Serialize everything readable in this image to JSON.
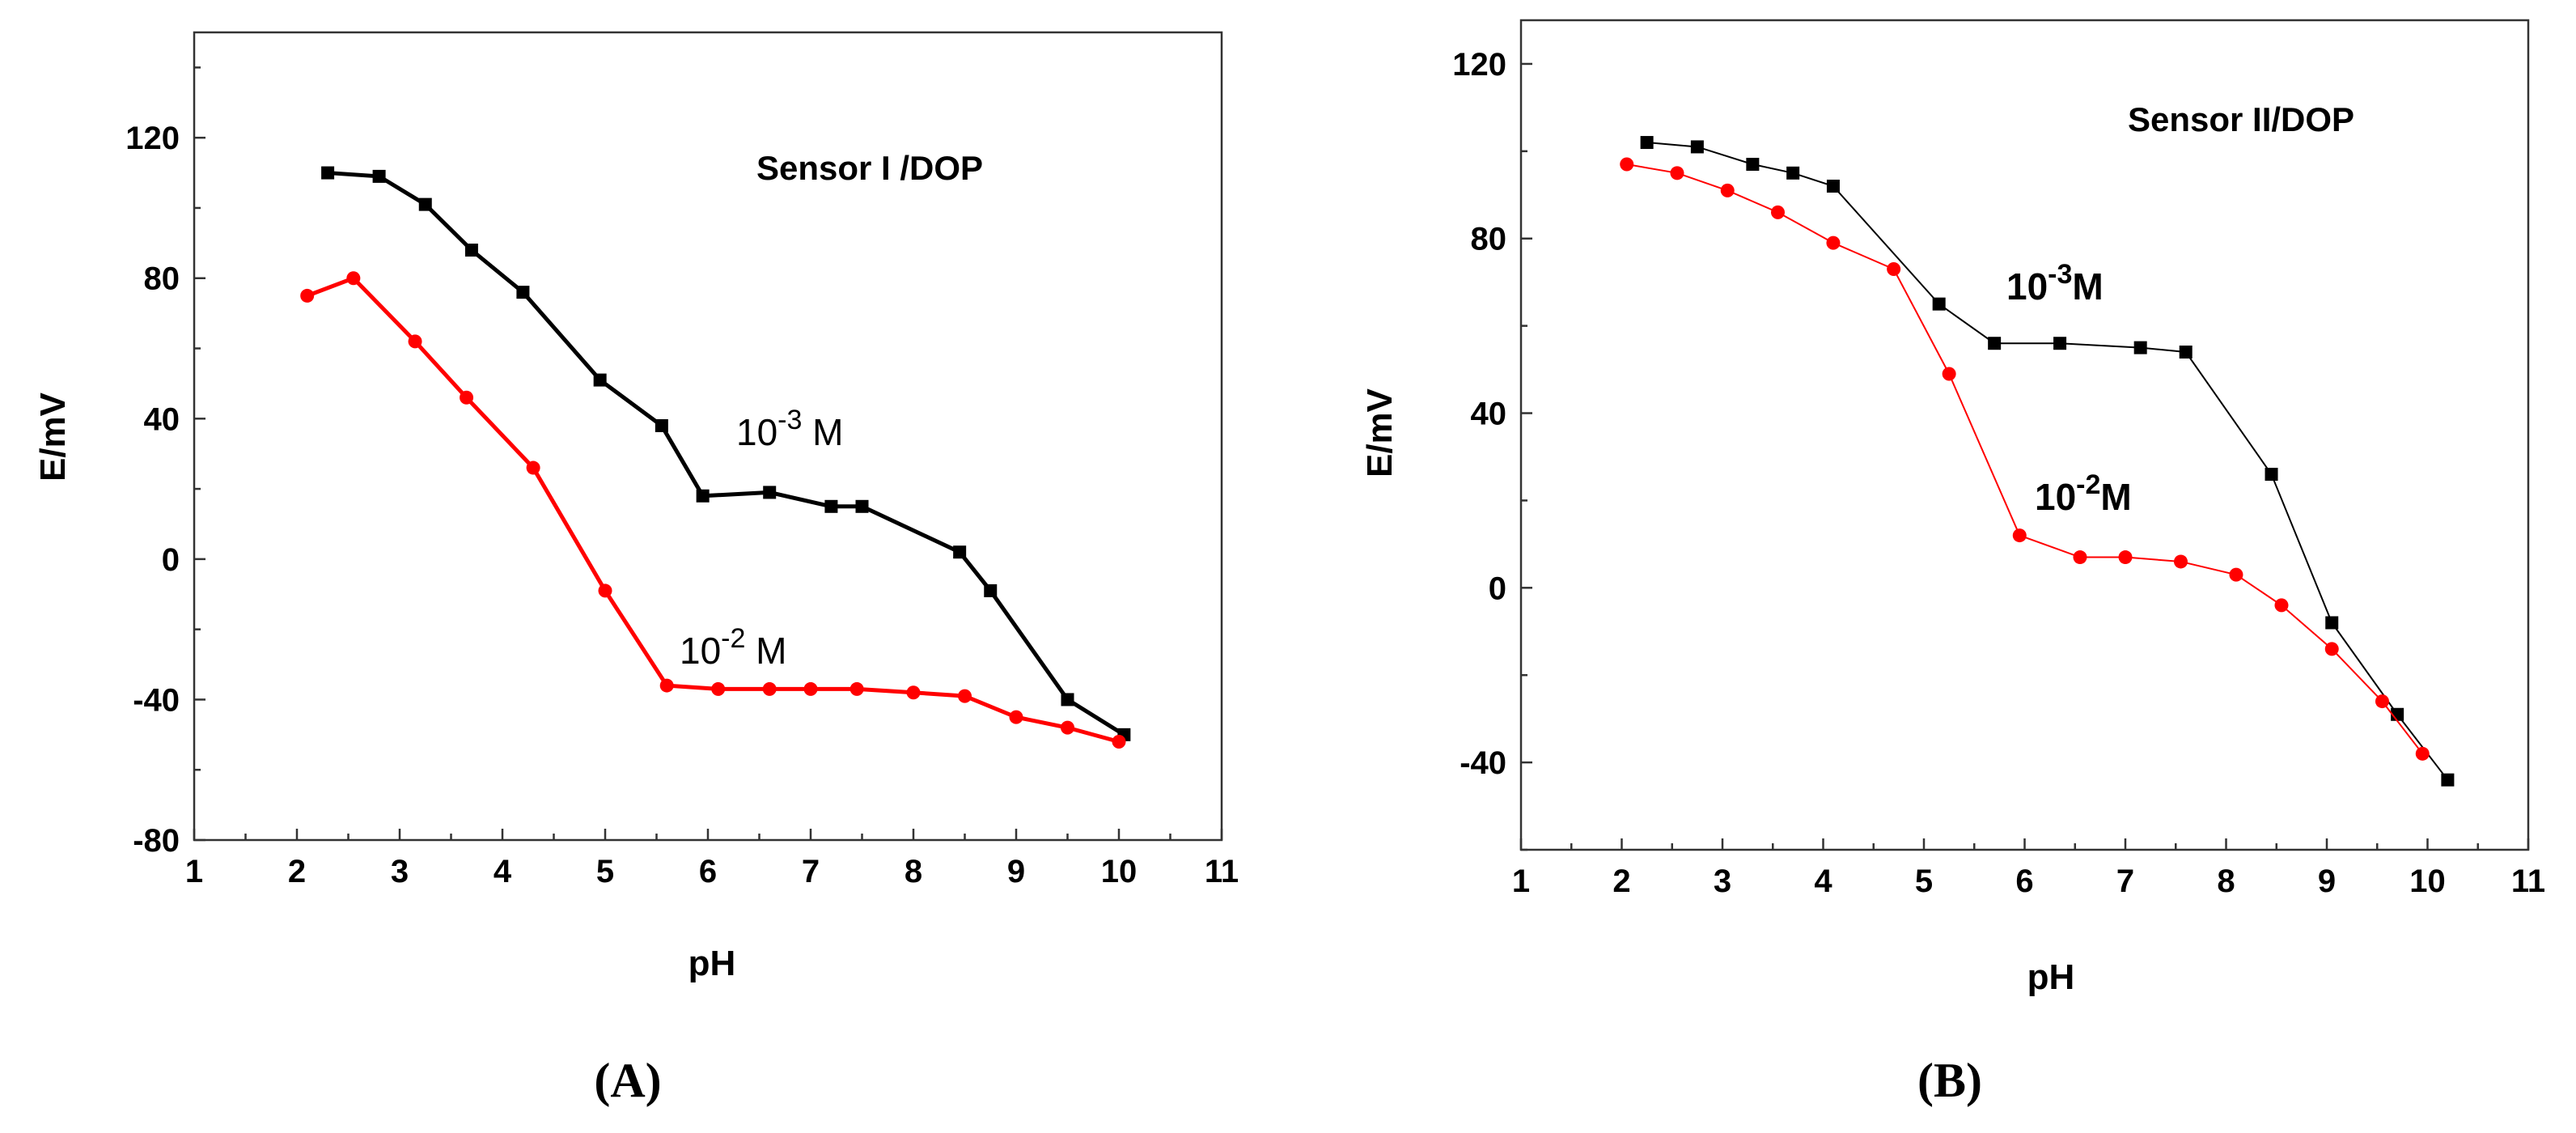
{
  "chart_data": [
    {
      "type": "line",
      "panel_label": "(A)",
      "title": "Sensor I /DOP",
      "xlabel": "pH",
      "ylabel": "E/mV",
      "xlim": [
        1,
        11
      ],
      "ylim": [
        -80,
        150
      ],
      "xticks": [
        1,
        2,
        3,
        4,
        5,
        6,
        7,
        8,
        9,
        10,
        11
      ],
      "yticks": [
        -80,
        -40,
        0,
        40,
        80,
        120
      ],
      "series": [
        {
          "name": "10-3 M",
          "label_base": "10",
          "label_exp": "-3",
          "label_unit": " M",
          "color": "#000000",
          "marker": "square",
          "points": [
            [
              2.3,
              110
            ],
            [
              2.8,
              109
            ],
            [
              3.25,
              101
            ],
            [
              3.7,
              88
            ],
            [
              4.2,
              76
            ],
            [
              4.95,
              51
            ],
            [
              5.55,
              38
            ],
            [
              5.95,
              18
            ],
            [
              6.6,
              19
            ],
            [
              7.2,
              15
            ],
            [
              7.5,
              15
            ],
            [
              8.45,
              2
            ],
            [
              8.75,
              -9
            ],
            [
              9.5,
              -40
            ],
            [
              10.05,
              -50
            ]
          ]
        },
        {
          "name": "10-2 M",
          "label_base": "10",
          "label_exp": "-2",
          "label_unit": " M",
          "color": "#ff0000",
          "marker": "circle",
          "points": [
            [
              2.1,
              75
            ],
            [
              2.55,
              80
            ],
            [
              3.15,
              62
            ],
            [
              3.65,
              46
            ],
            [
              4.3,
              26
            ],
            [
              5.0,
              -9
            ],
            [
              5.6,
              -36
            ],
            [
              6.1,
              -37
            ],
            [
              6.6,
              -37
            ],
            [
              7.0,
              -37
            ],
            [
              7.45,
              -37
            ],
            [
              8.0,
              -38
            ],
            [
              8.5,
              -39
            ],
            [
              9.0,
              -45
            ],
            [
              9.5,
              -48
            ],
            [
              10.0,
              -52
            ]
          ]
        }
      ]
    },
    {
      "type": "line",
      "panel_label": "(B)",
      "title": "Sensor II/DOP",
      "xlabel": "pH",
      "ylabel": "E/mV",
      "xlim": [
        1,
        11
      ],
      "ylim": [
        -60,
        130
      ],
      "xticks": [
        1,
        2,
        3,
        4,
        5,
        6,
        7,
        8,
        9,
        10,
        11
      ],
      "yticks": [
        -40,
        0,
        40,
        80,
        120
      ],
      "series": [
        {
          "name": "10-3M",
          "label_base": "10",
          "label_exp": "-3",
          "label_unit": "M",
          "color": "#000000",
          "marker": "square",
          "points": [
            [
              2.25,
              102
            ],
            [
              2.75,
              101
            ],
            [
              3.3,
              97
            ],
            [
              3.7,
              95
            ],
            [
              4.1,
              92
            ],
            [
              5.15,
              65
            ],
            [
              5.7,
              56
            ],
            [
              6.35,
              56
            ],
            [
              7.15,
              55
            ],
            [
              7.6,
              54
            ],
            [
              8.45,
              26
            ],
            [
              9.05,
              -8
            ],
            [
              9.7,
              -29
            ],
            [
              10.2,
              -44
            ]
          ]
        },
        {
          "name": "10-2M",
          "label_base": "10",
          "label_exp": "-2",
          "label_unit": "M",
          "color": "#ff0000",
          "marker": "circle",
          "points": [
            [
              2.05,
              97
            ],
            [
              2.55,
              95
            ],
            [
              3.05,
              91
            ],
            [
              3.55,
              86
            ],
            [
              4.1,
              79
            ],
            [
              4.7,
              73
            ],
            [
              5.25,
              49
            ],
            [
              5.95,
              12
            ],
            [
              6.55,
              7
            ],
            [
              7.0,
              7
            ],
            [
              7.55,
              6
            ],
            [
              8.1,
              3
            ],
            [
              8.55,
              -4
            ],
            [
              9.05,
              -14
            ],
            [
              9.55,
              -26
            ],
            [
              9.95,
              -38
            ]
          ]
        }
      ]
    }
  ]
}
